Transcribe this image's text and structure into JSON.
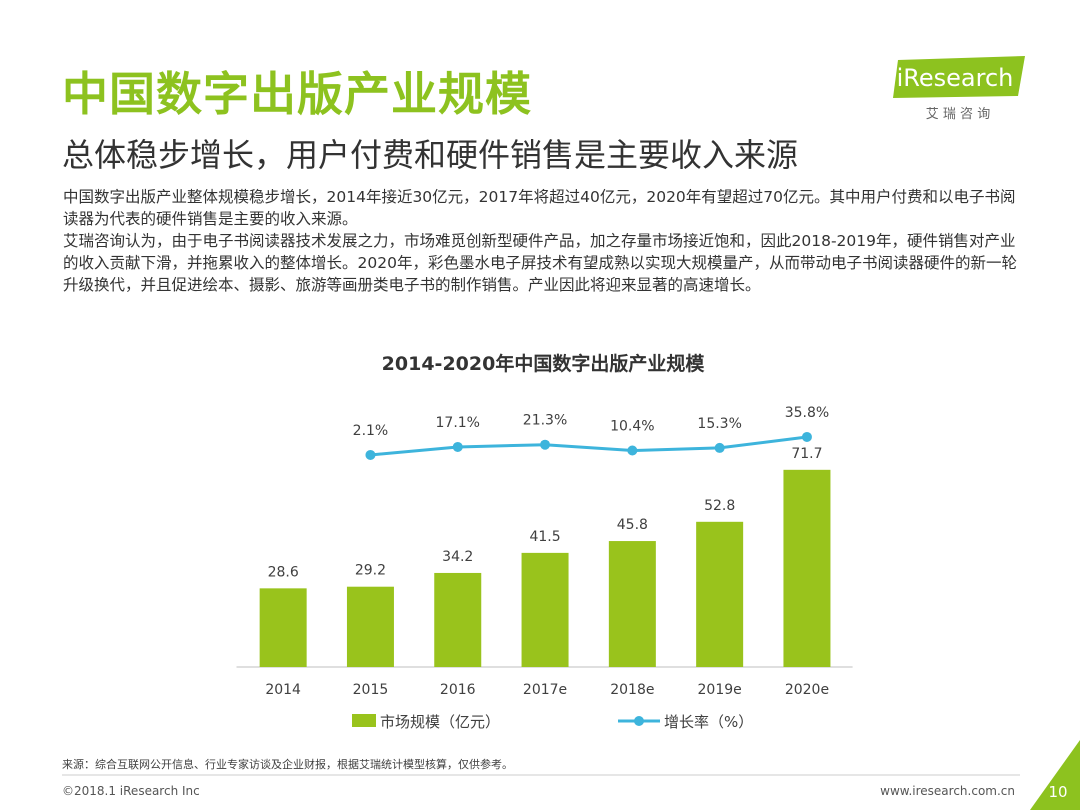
{
  "header": {
    "title": "中国数字出版产业规模",
    "subtitle": "总体稳步增长，用户付费和硬件销售是主要收入来源",
    "logo": "iResearch",
    "logo_cn": "艾 瑞 咨 询"
  },
  "body": {
    "paragraphs": [
      "中国数字出版产业整体规模稳步增长，2014年接近30亿元，2017年将超过40亿元，2020年有望超过70亿元。其中用户付费和以电子书阅读器为代表的硬件销售是主要的收入来源。",
      "艾瑞咨询认为，由于电子书阅读器技术发展之力，市场难觅创新型硬件产品，加之存量市场接近饱和，因此2018-2019年，硬件销售对产业的收入贡献下滑，并拖累收入的整体增长。2020年，彩色墨水电子屏技术有望成熟以实现大规模量产，从而带动电子书阅读器硬件的新一轮升级换代，并且促进绘本、摄影、旅游等画册类电子书的制作销售。产业因此将迎来显著的高速增长。"
    ]
  },
  "chart_data": {
    "type": "bar",
    "title": "2014-2020年中国数字出版产业规模",
    "categories": [
      "2014",
      "2015",
      "2016",
      "2017e",
      "2018e",
      "2019e",
      "2020e"
    ],
    "series": [
      {
        "name": "市场规模（亿元）",
        "type": "bar",
        "color": "#99c31c",
        "values": [
          28.6,
          29.2,
          34.2,
          41.5,
          45.8,
          52.8,
          71.7
        ]
      },
      {
        "name": "增长率（%）",
        "type": "line",
        "axis": "y2",
        "color": "#3db4dc",
        "values": [
          null,
          2.1,
          17.1,
          21.3,
          10.4,
          15.3,
          35.8
        ],
        "value_labels": [
          null,
          "2.1%",
          "17.1%",
          "21.3%",
          "10.4%",
          "15.3%",
          "35.8%"
        ]
      }
    ],
    "ylim": [
      0,
      100
    ],
    "y2lim": [
      -395,
      120
    ],
    "grid": false,
    "legend": "bottom"
  },
  "footer": {
    "source": "来源：综合互联网公开信息、行业专家访谈及企业财报，根据艾瑞统计模型核算，仅供参考。",
    "copyright": "©2018.1 iResearch Inc",
    "url": "www.iresearch.com.cn",
    "page": "10"
  }
}
